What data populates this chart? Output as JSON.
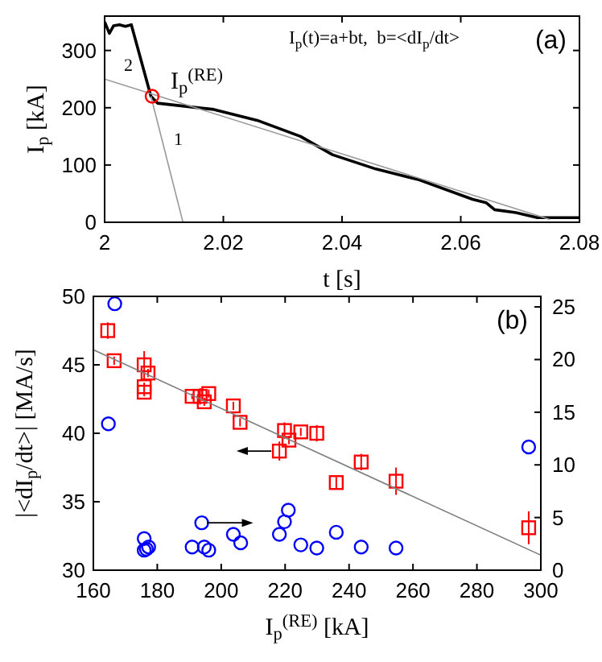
{
  "chart_data": [
    {
      "type": "line",
      "title": "(a)",
      "xlabel": "t  [s]",
      "ylabel": "I$_{p}$ [kA]",
      "xlim": [
        2,
        2.08
      ],
      "ylim": [
        0,
        360
      ],
      "xticks": [
        2,
        2.02,
        2.04,
        2.06,
        2.08
      ],
      "yticks": [
        0,
        100,
        200,
        300
      ],
      "grid": false,
      "annotations": [
        "I$_{p}$(t)=a+bt,  b=<dI$_{p}$/dt>",
        "2",
        "1",
        "I$_{p}$$^{(RE)}$"
      ],
      "series": [
        {
          "type": "line",
          "color": "#000000",
          "x": [
            2,
            2.0008,
            2.0015,
            2.0025,
            2.0035,
            2.0045,
            2.0078,
            2.0089,
            2.0184,
            2.0257,
            2.033,
            2.0384,
            2.0457,
            2.053,
            2.062,
            2.0643,
            2.0657,
            2.0693,
            2.0729,
            2.0765,
            2.08
          ],
          "values": [
            350,
            330,
            343,
            345,
            342,
            345,
            220,
            208,
            197,
            178,
            150,
            118,
            93,
            74,
            40,
            34,
            22,
            17,
            8,
            8,
            8
          ]
        },
        {
          "type": "line",
          "color": "#999999",
          "x": [
            2,
            2.075
          ],
          "values": [
            250,
            5
          ]
        },
        {
          "type": "line",
          "color": "#999999",
          "x": [
            2.0078,
            2.0132
          ],
          "values": [
            220,
            0
          ]
        },
        {
          "type": "scatter",
          "marker": "circle",
          "color": "#ff0000",
          "x": [
            2.008
          ],
          "values": [
            220
          ]
        }
      ]
    },
    {
      "type": "scatter",
      "title": "(b)",
      "xlabel": "I$_{p}$$^{(RE)}$  [kA]",
      "ylabel": "|<dI$_{p}$/dt>|  [MA/s]",
      "xlim": [
        160,
        300
      ],
      "ylim": [
        30,
        50
      ],
      "y2lim": [
        0,
        26
      ],
      "xticks": [
        160,
        180,
        200,
        220,
        240,
        260,
        280,
        300
      ],
      "yticks": [
        30,
        35,
        40,
        45,
        50
      ],
      "y2ticks": [
        0,
        5,
        10,
        15,
        20,
        25
      ],
      "grid": false,
      "series": [
        {
          "marker": "square",
          "color": "#ff0000",
          "x": [
            164.5,
            166.5,
            175.9,
            175.9,
            175.9,
            177.1,
            190.9,
            193.4,
            194.7,
            196.1,
            203.8,
            205.9,
            218.2,
            219.8,
            221.2,
            224.9,
            229.9,
            236,
            243.8,
            254.7,
            296.2
          ],
          "values": [
            47.5,
            45.3,
            45,
            43.4,
            43,
            44.4,
            42.7,
            42.7,
            42.3,
            42.9,
            42,
            40.8,
            38.7,
            40.2,
            39.5,
            40.1,
            40,
            36.4,
            37.9,
            36.5,
            33.1
          ],
          "errors": [
            0.6,
            0.3,
            1,
            0.3,
            0.3,
            0.3,
            0.2,
            0.6,
            0.3,
            0.3,
            0.3,
            0.3,
            0.7,
            0.6,
            0.3,
            0.3,
            0.6,
            0.4,
            0.6,
            1,
            1.2
          ]
        },
        {
          "marker": "circle",
          "color": "#0000ff",
          "axis": "y2",
          "x": [
            166.7,
            164.7,
            175.9,
            175.9,
            176.6,
            177.3,
            190.9,
            193.9,
            194.7,
            196.1,
            203.8,
            206.1,
            218.2,
            219.8,
            221,
            224.9,
            229.9,
            236,
            243.8,
            254.7,
            296.2
          ],
          "values": [
            25.3,
            13.9,
            3,
            1.9,
            2,
            2.2,
            2.2,
            4.5,
            2.2,
            1.9,
            3.4,
            2.6,
            3.4,
            4.6,
            5.7,
            2.4,
            2.1,
            3.6,
            2.2,
            2.1,
            11.7
          ]
        },
        {
          "type": "line",
          "color": "#808080",
          "x": [
            160,
            300
          ],
          "values": [
            46.1,
            31.1
          ]
        }
      ]
    }
  ]
}
